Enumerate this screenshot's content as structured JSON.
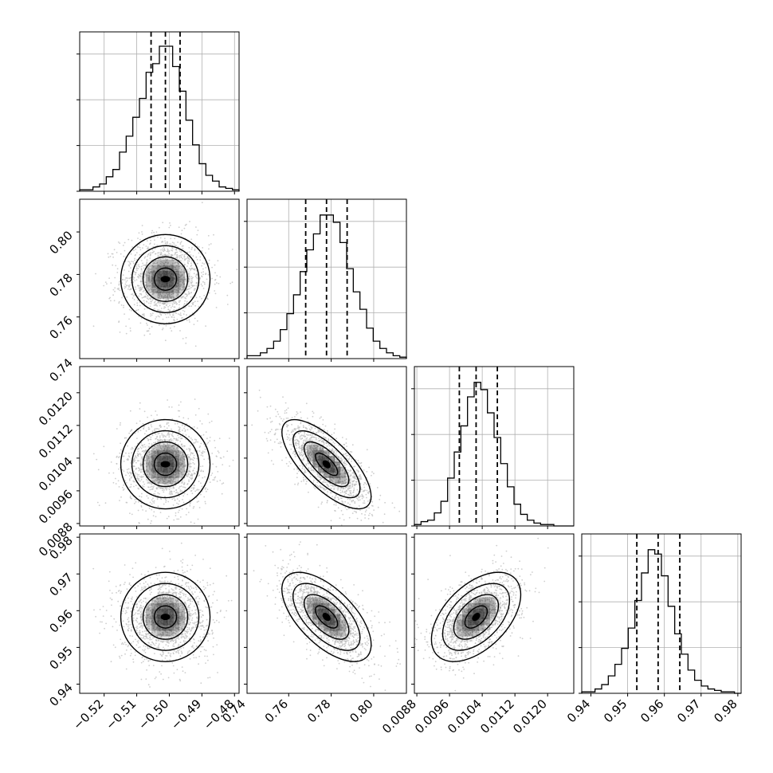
{
  "chart_data": {
    "type": "corner",
    "grid": true,
    "parameters": [
      {
        "ticks": [
          -0.52,
          -0.51,
          -0.5,
          -0.49,
          -0.48
        ],
        "tick_labels": [
          "−0.52",
          "−0.51",
          "−0.50",
          "−0.49",
          "−0.48"
        ],
        "range": [
          -0.5275,
          -0.4786
        ],
        "quantiles": [
          -0.5056,
          -0.5012,
          -0.4967
        ],
        "hist": [
          0.01,
          0.01,
          0.03,
          0.05,
          0.1,
          0.15,
          0.27,
          0.38,
          0.51,
          0.64,
          0.82,
          0.88,
          1.0,
          1.0,
          0.86,
          0.69,
          0.49,
          0.32,
          0.19,
          0.11,
          0.07,
          0.03,
          0.02,
          0.01
        ]
      },
      {
        "ticks": [
          0.74,
          0.76,
          0.78,
          0.8
        ],
        "tick_labels": [
          "0.74",
          "0.76",
          "0.78",
          "0.80"
        ],
        "range": [
          0.7404,
          0.8154
        ],
        "quantiles": [
          0.768,
          0.7778,
          0.7875
        ],
        "hist": [
          0.02,
          0.02,
          0.04,
          0.07,
          0.12,
          0.2,
          0.31,
          0.44,
          0.6,
          0.75,
          0.86,
          0.99,
          0.99,
          0.94,
          0.8,
          0.62,
          0.46,
          0.34,
          0.21,
          0.12,
          0.07,
          0.04,
          0.02,
          0.01
        ]
      },
      {
        "ticks": [
          0.0088,
          0.0096,
          0.0104,
          0.0112,
          0.012
        ],
        "tick_labels": [
          "0.0088",
          "0.0096",
          "0.0104",
          "0.0112",
          "0.0120"
        ],
        "range": [
          0.00874,
          0.01264
        ],
        "quantiles": [
          0.00984,
          0.01025,
          0.01077
        ],
        "hist": [
          0.01,
          0.03,
          0.04,
          0.09,
          0.17,
          0.33,
          0.51,
          0.69,
          0.89,
          0.99,
          0.94,
          0.78,
          0.61,
          0.43,
          0.27,
          0.15,
          0.08,
          0.04,
          0.02,
          0.01,
          0.01,
          0.0,
          0.0,
          0.0
        ]
      },
      {
        "ticks": [
          0.94,
          0.95,
          0.96,
          0.97,
          0.98
        ],
        "tick_labels": [
          "0.94",
          "0.95",
          "0.96",
          "0.97",
          "0.98"
        ],
        "range": [
          0.9375,
          0.9809
        ],
        "quantiles": [
          0.9525,
          0.9583,
          0.9642
        ],
        "hist": [
          0.01,
          0.01,
          0.03,
          0.06,
          0.12,
          0.2,
          0.31,
          0.45,
          0.64,
          0.83,
          0.99,
          0.96,
          0.81,
          0.6,
          0.41,
          0.27,
          0.16,
          0.09,
          0.05,
          0.03,
          0.02,
          0.01,
          0.01,
          0.0
        ]
      }
    ],
    "joint": [
      {
        "row": 1,
        "col": 0,
        "center": [
          -0.5012,
          0.7778
        ],
        "rho": 0.0
      },
      {
        "row": 2,
        "col": 0,
        "center": [
          -0.5012,
          0.01025
        ],
        "rho": 0.0
      },
      {
        "row": 2,
        "col": 1,
        "center": [
          0.7778,
          0.01025
        ],
        "rho": -0.72
      },
      {
        "row": 3,
        "col": 0,
        "center": [
          -0.5012,
          0.9583
        ],
        "rho": 0.0
      },
      {
        "row": 3,
        "col": 1,
        "center": [
          0.7778,
          0.9583
        ],
        "rho": -0.62
      },
      {
        "row": 3,
        "col": 2,
        "center": [
          0.01025,
          0.9583
        ],
        "rho": 0.5
      }
    ]
  },
  "style": {
    "line_color": "#000000",
    "grid_color": "#b0b0b0",
    "point_color": "#bdbdbd",
    "density_color": "#000000"
  }
}
